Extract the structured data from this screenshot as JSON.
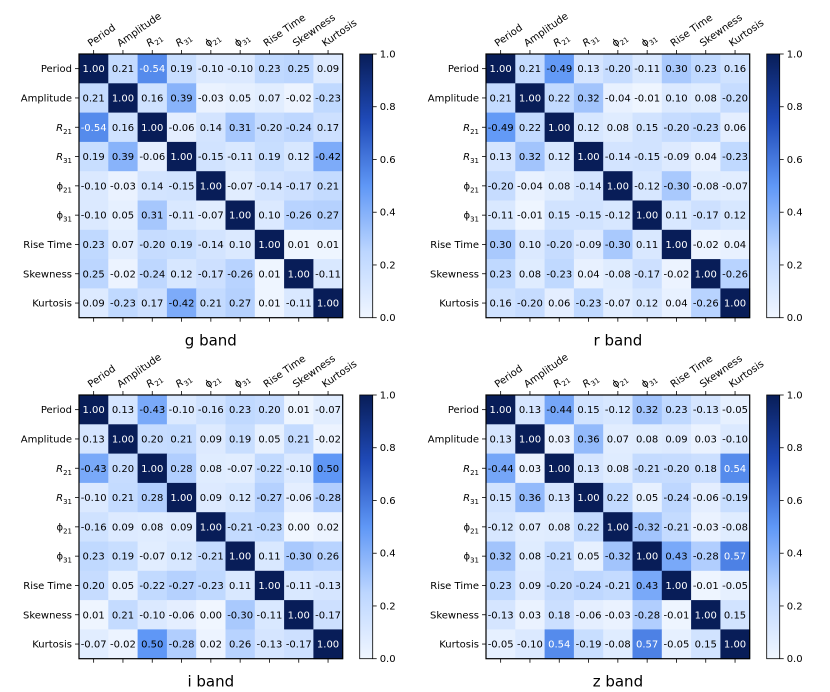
{
  "chart_data": [
    {
      "type": "heatmap",
      "title": "g band",
      "labels": [
        "Period",
        "Amplitude",
        "R21",
        "R31",
        "φ21",
        "φ31",
        "Rise Time",
        "Skewness",
        "Kurtosis"
      ],
      "label_display": [
        "Period",
        "Amplitude",
        "R_21",
        "R_31",
        "ϕ_21",
        "ϕ_31",
        "Rise Time",
        "Skewness",
        "Kurtosis"
      ],
      "values": [
        [
          1.0,
          0.21,
          -0.54,
          0.19,
          -0.1,
          -0.1,
          0.23,
          0.25,
          0.09
        ],
        [
          0.21,
          1.0,
          0.16,
          0.39,
          -0.03,
          0.05,
          0.07,
          -0.02,
          -0.23
        ],
        [
          -0.54,
          0.16,
          1.0,
          -0.06,
          0.14,
          0.31,
          -0.2,
          -0.24,
          0.17
        ],
        [
          0.19,
          0.39,
          -0.06,
          1.0,
          -0.15,
          -0.11,
          0.19,
          0.12,
          -0.42
        ],
        [
          -0.1,
          -0.03,
          0.14,
          -0.15,
          1.0,
          -0.07,
          -0.14,
          -0.17,
          0.21
        ],
        [
          -0.1,
          0.05,
          0.31,
          -0.11,
          -0.07,
          1.0,
          0.1,
          -0.26,
          0.27
        ],
        [
          0.23,
          0.07,
          -0.2,
          0.19,
          -0.14,
          0.1,
          1.0,
          0.01,
          0.01
        ],
        [
          0.25,
          -0.02,
          -0.24,
          0.12,
          -0.17,
          -0.26,
          0.01,
          1.0,
          -0.11
        ],
        [
          0.09,
          -0.23,
          0.17,
          -0.42,
          0.21,
          0.27,
          0.01,
          -0.11,
          1.0
        ]
      ],
      "colorbar": {
        "range": [
          0.0,
          1.0
        ],
        "ticks": [
          "0.0",
          "0.2",
          "0.4",
          "0.6",
          "0.8",
          "1.0"
        ]
      }
    },
    {
      "type": "heatmap",
      "title": "r band",
      "labels": [
        "Period",
        "Amplitude",
        "R21",
        "R31",
        "φ21",
        "φ31",
        "Rise Time",
        "Skewness",
        "Kurtosis"
      ],
      "label_display": [
        "Period",
        "Amplitude",
        "R_21",
        "R_31",
        "ϕ_21",
        "ϕ_31",
        "Rise Time",
        "Skewness",
        "Kurtosis"
      ],
      "values": [
        [
          1.0,
          0.21,
          -0.49,
          0.13,
          -0.2,
          -0.11,
          0.3,
          0.23,
          0.16
        ],
        [
          0.21,
          1.0,
          0.22,
          0.32,
          -0.04,
          -0.01,
          0.1,
          0.08,
          -0.2
        ],
        [
          -0.49,
          0.22,
          1.0,
          0.12,
          0.08,
          0.15,
          -0.2,
          -0.23,
          0.06
        ],
        [
          0.13,
          0.32,
          0.12,
          1.0,
          -0.14,
          -0.15,
          -0.09,
          0.04,
          -0.23
        ],
        [
          -0.2,
          -0.04,
          0.08,
          -0.14,
          1.0,
          -0.12,
          -0.3,
          -0.08,
          -0.07
        ],
        [
          -0.11,
          -0.01,
          0.15,
          -0.15,
          -0.12,
          1.0,
          0.11,
          -0.17,
          0.12
        ],
        [
          0.3,
          0.1,
          -0.2,
          -0.09,
          -0.3,
          0.11,
          1.0,
          -0.02,
          0.04
        ],
        [
          0.23,
          0.08,
          -0.23,
          0.04,
          -0.08,
          -0.17,
          -0.02,
          1.0,
          -0.26
        ],
        [
          0.16,
          -0.2,
          0.06,
          -0.23,
          -0.07,
          0.12,
          0.04,
          -0.26,
          1.0
        ]
      ],
      "colorbar": {
        "range": [
          0.0,
          1.0
        ],
        "ticks": [
          "0.0",
          "0.2",
          "0.4",
          "0.6",
          "0.8",
          "1.0"
        ]
      }
    },
    {
      "type": "heatmap",
      "title": "i band",
      "labels": [
        "Period",
        "Amplitude",
        "R21",
        "R31",
        "φ21",
        "φ31",
        "Rise Time",
        "Skewness",
        "Kurtosis"
      ],
      "label_display": [
        "Period",
        "Amplitude",
        "R_21",
        "R_31",
        "ϕ_21",
        "ϕ_31",
        "Rise Time",
        "Skewness",
        "Kurtosis"
      ],
      "values": [
        [
          1.0,
          0.13,
          -0.43,
          -0.1,
          -0.16,
          0.23,
          0.2,
          0.01,
          -0.07
        ],
        [
          0.13,
          1.0,
          0.2,
          0.21,
          0.09,
          0.19,
          0.05,
          0.21,
          -0.02
        ],
        [
          -0.43,
          0.2,
          1.0,
          0.28,
          0.08,
          -0.07,
          -0.22,
          -0.1,
          0.5
        ],
        [
          -0.1,
          0.21,
          0.28,
          1.0,
          0.09,
          0.12,
          -0.27,
          -0.06,
          -0.28
        ],
        [
          -0.16,
          0.09,
          0.08,
          0.09,
          1.0,
          -0.21,
          -0.23,
          0.0,
          0.02
        ],
        [
          0.23,
          0.19,
          -0.07,
          0.12,
          -0.21,
          1.0,
          0.11,
          -0.3,
          0.26
        ],
        [
          0.2,
          0.05,
          -0.22,
          -0.27,
          -0.23,
          0.11,
          1.0,
          -0.11,
          -0.13
        ],
        [
          0.01,
          0.21,
          -0.1,
          -0.06,
          0.0,
          -0.3,
          -0.11,
          1.0,
          -0.17
        ],
        [
          -0.07,
          -0.02,
          0.5,
          -0.28,
          0.02,
          0.26,
          -0.13,
          -0.17,
          1.0
        ]
      ],
      "colorbar": {
        "range": [
          0.0,
          1.0
        ],
        "ticks": [
          "0.0",
          "0.2",
          "0.4",
          "0.6",
          "0.8",
          "1.0"
        ]
      }
    },
    {
      "type": "heatmap",
      "title": "z band",
      "labels": [
        "Period",
        "Amplitude",
        "R21",
        "R31",
        "φ21",
        "φ31",
        "Rise Time",
        "Skewness",
        "Kurtosis"
      ],
      "label_display": [
        "Period",
        "Amplitude",
        "R_21",
        "R_31",
        "ϕ_21",
        "ϕ_31",
        "Rise Time",
        "Skewness",
        "Kurtosis"
      ],
      "values": [
        [
          1.0,
          0.13,
          -0.44,
          0.15,
          -0.12,
          0.32,
          0.23,
          -0.13,
          -0.05
        ],
        [
          0.13,
          1.0,
          0.03,
          0.36,
          0.07,
          0.08,
          0.09,
          0.03,
          -0.1
        ],
        [
          -0.44,
          0.03,
          1.0,
          0.13,
          0.08,
          -0.21,
          -0.2,
          0.18,
          0.54
        ],
        [
          0.15,
          0.36,
          0.13,
          1.0,
          0.22,
          0.05,
          -0.24,
          -0.06,
          -0.19
        ],
        [
          -0.12,
          0.07,
          0.08,
          0.22,
          1.0,
          -0.32,
          -0.21,
          -0.03,
          -0.08
        ],
        [
          0.32,
          0.08,
          -0.21,
          0.05,
          -0.32,
          1.0,
          0.43,
          -0.28,
          0.57
        ],
        [
          0.23,
          0.09,
          -0.2,
          -0.24,
          -0.21,
          0.43,
          1.0,
          -0.01,
          -0.05
        ],
        [
          -0.13,
          0.03,
          0.18,
          -0.06,
          -0.03,
          -0.28,
          -0.01,
          1.0,
          0.15
        ],
        [
          -0.05,
          -0.1,
          0.54,
          -0.19,
          -0.08,
          0.57,
          -0.05,
          0.15,
          1.0
        ]
      ],
      "colorbar": {
        "range": [
          0.0,
          1.0
        ],
        "ticks": [
          "0.0",
          "0.2",
          "0.4",
          "0.6",
          "0.8",
          "1.0"
        ]
      }
    }
  ]
}
